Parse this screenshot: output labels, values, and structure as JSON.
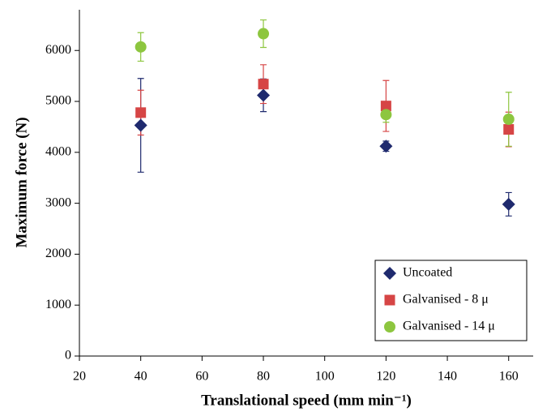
{
  "chart_data": {
    "type": "scatter",
    "x_label": "Translational speed (mm min⁻¹)",
    "y_label": "Maximum force (N)",
    "xlim": [
      20,
      168
    ],
    "xticks": [
      20,
      40,
      60,
      80,
      100,
      120,
      140,
      160
    ],
    "ylim": [
      0,
      6800
    ],
    "yticks": [
      0,
      1000,
      2000,
      3000,
      4000,
      5000,
      6000
    ],
    "legend": "lower right",
    "series": [
      {
        "name": "Uncoated",
        "color": "#1f2a6e",
        "marker": "diamond",
        "x": [
          40,
          80,
          120,
          160
        ],
        "values": [
          4530,
          5120,
          4120,
          2980
        ],
        "errors": [
          920,
          320,
          100,
          230
        ]
      },
      {
        "name": "Galvanised - 8 μ",
        "color": "#d64545",
        "marker": "square",
        "x": [
          40,
          80,
          120,
          160
        ],
        "values": [
          4780,
          5340,
          4910,
          4450
        ],
        "errors": [
          440,
          380,
          500,
          340
        ]
      },
      {
        "name": "Galvanised - 14 μ",
        "color": "#8dc63f",
        "marker": "circle",
        "x": [
          40,
          80,
          120,
          160
        ],
        "values": [
          6070,
          6330,
          4740,
          4650
        ],
        "errors": [
          280,
          270,
          150,
          530
        ]
      }
    ]
  }
}
